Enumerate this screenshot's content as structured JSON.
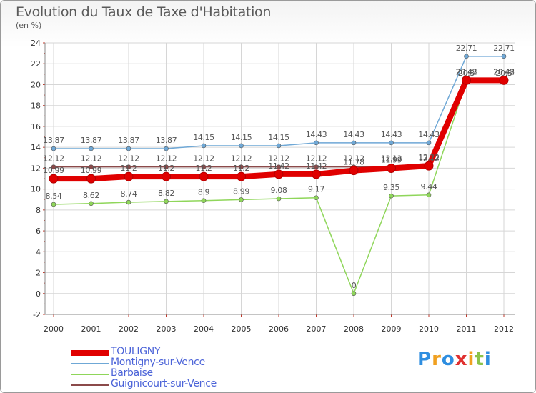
{
  "chart_data": {
    "type": "line",
    "title": "Evolution du Taux de Taxe d'Habitation",
    "subtitle": "(en %)",
    "xlabel": "",
    "ylabel": "",
    "x": [
      "2000",
      "2001",
      "2002",
      "2003",
      "2004",
      "2005",
      "2006",
      "2007",
      "2008",
      "2009",
      "2010",
      "2011",
      "2012"
    ],
    "ylim": [
      -2,
      24
    ],
    "yticks": [
      "-2",
      "0",
      "2",
      "4",
      "6",
      "8",
      "10",
      "12",
      "14",
      "16",
      "18",
      "20",
      "22",
      "24"
    ],
    "grid": true,
    "series": [
      {
        "name": "TOULIGNY",
        "color": "#e00000",
        "values": [
          10.99,
          10.99,
          11.2,
          11.2,
          11.2,
          11.2,
          11.42,
          11.42,
          11.78,
          11.99,
          12.22,
          20.42,
          20.42
        ],
        "labels": [
          "10.99",
          "10.99",
          "11.2",
          "11.2",
          "11.2",
          "11.2",
          "11.42",
          "11.42",
          "11.78",
          "11.99",
          "12.22",
          "20.42",
          "20.42"
        ]
      },
      {
        "name": "Montigny-sur-Vence",
        "color": "#6fa8d6",
        "values": [
          13.87,
          13.87,
          13.87,
          13.87,
          14.15,
          14.15,
          14.15,
          14.43,
          14.43,
          14.43,
          14.43,
          22.71,
          22.71
        ],
        "labels": [
          "13.87",
          "13.87",
          "13.87",
          "13.87",
          "14.15",
          "14.15",
          "14.15",
          "14.43",
          "14.43",
          "14.43",
          "14.43",
          "22.71",
          "22.71"
        ]
      },
      {
        "name": "Barbaise",
        "color": "#8fd65a",
        "values": [
          8.54,
          8.62,
          8.74,
          8.82,
          8.9,
          8.99,
          9.08,
          9.17,
          0,
          9.35,
          9.44,
          20.3,
          20.3
        ],
        "labels": [
          "8.54",
          "8.62",
          "8.74",
          "8.82",
          "8.9",
          "8.99",
          "9.08",
          "9.17",
          "0",
          "9.35",
          "9.44",
          "20.3",
          "20.3"
        ]
      },
      {
        "name": "Guignicourt-sur-Vence",
        "color": "#8b4a4a",
        "values": [
          12.12,
          12.12,
          12.12,
          12.12,
          12.12,
          12.12,
          12.12,
          12.12,
          12.12,
          12.12,
          12.12,
          20.43,
          20.43
        ],
        "labels": [
          "12.12",
          "12.12",
          "12.12",
          "12.12",
          "12.12",
          "12.12",
          "12.12",
          "12.12",
          "12.12",
          "12.12",
          "12.12",
          "20.43",
          "20.43"
        ]
      }
    ],
    "legend": {
      "position": "bottom-left",
      "items": [
        "TOULIGNY",
        "Montigny-sur-Vence",
        "Barbaise",
        "Guignicourt-sur-Vence"
      ]
    }
  },
  "logo": {
    "letters": [
      "P",
      "r",
      "o",
      "x",
      "i",
      "t",
      "i"
    ],
    "colors": [
      "#2e8ee0",
      "#f0a020",
      "#2e8ee0",
      "#e03030",
      "#f0a020",
      "#8bc34a",
      "#2e8ee0"
    ]
  }
}
